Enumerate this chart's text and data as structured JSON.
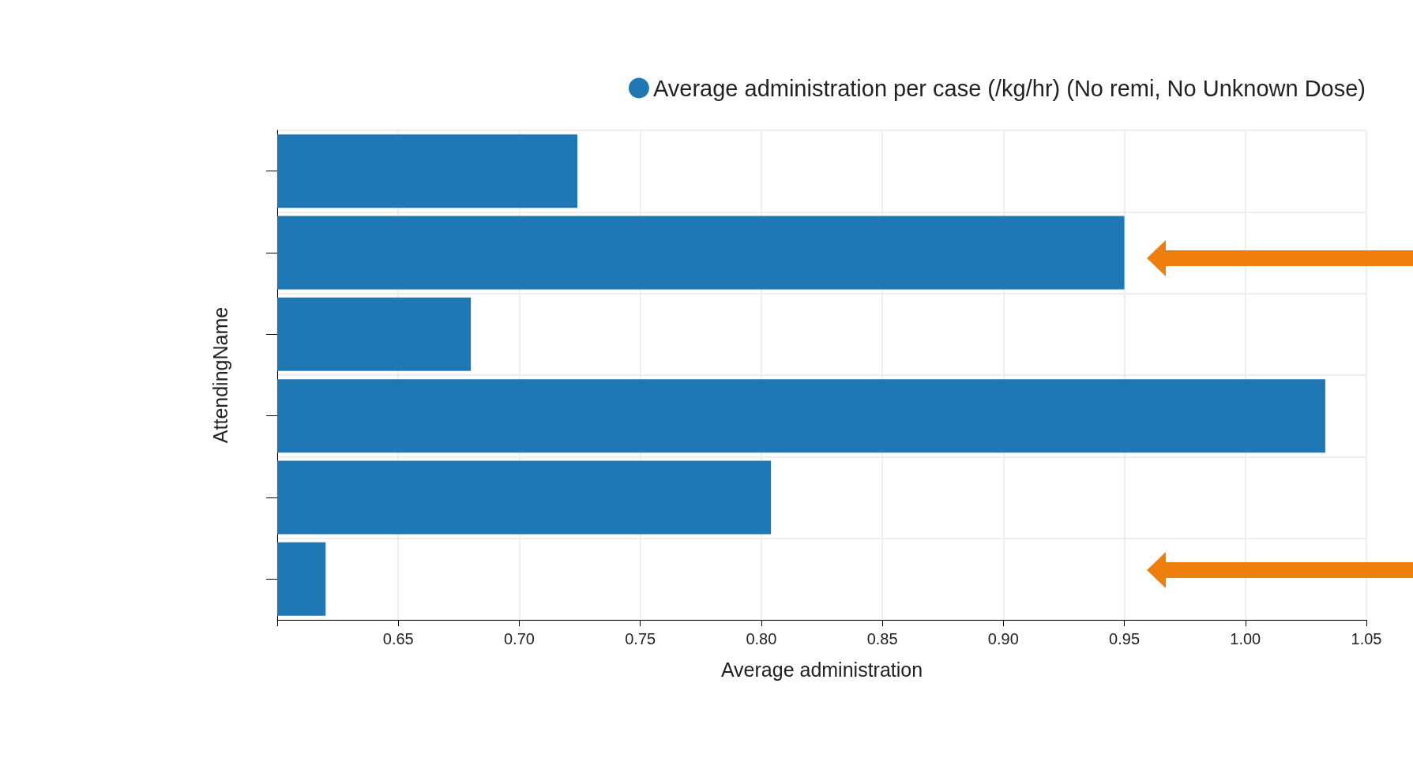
{
  "chart_data": {
    "type": "bar",
    "orientation": "horizontal",
    "xlabel": "Average administration",
    "ylabel": "AttendingName",
    "categories": [
      null,
      null,
      null,
      null,
      null,
      null
    ],
    "series": [
      {
        "name": "Average administration per case (/kg/hr) (No remi, No Unknown Dose)",
        "color": "#1f77b4",
        "values": [
          0.724,
          0.95,
          0.68,
          1.033,
          0.804,
          0.62
        ]
      }
    ],
    "xlim": [
      0.6,
      1.05
    ],
    "xticks": [
      {
        "value": 0.6,
        "label": null
      },
      {
        "value": 0.65,
        "label": "0.65"
      },
      {
        "value": 0.7,
        "label": "0.70"
      },
      {
        "value": 0.75,
        "label": "0.75"
      },
      {
        "value": 0.8,
        "label": "0.80"
      },
      {
        "value": 0.85,
        "label": "0.85"
      },
      {
        "value": 0.9,
        "label": "0.90"
      },
      {
        "value": 0.95,
        "label": "0.95"
      },
      {
        "value": 1.0,
        "label": "1.00"
      },
      {
        "value": 1.05,
        "label": "1.05"
      }
    ],
    "grid": true,
    "legend": "top right",
    "marker": "circle"
  }
}
